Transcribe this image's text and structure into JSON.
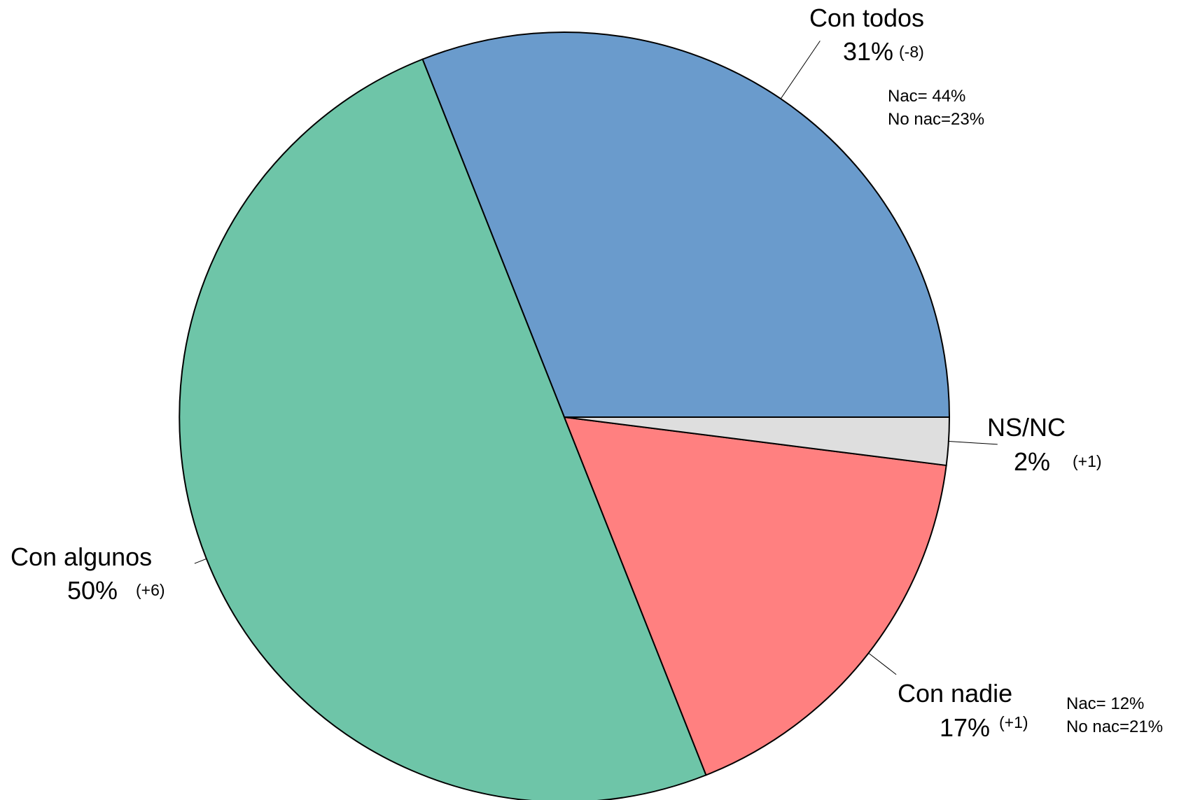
{
  "chart_data": {
    "type": "pie",
    "start_angle_deg": 0,
    "direction": "counterclockwise",
    "slices": [
      {
        "name": "Con todos",
        "value": 31,
        "pct_label": "31%",
        "change": "(-8)",
        "color": "#6A9BCC",
        "notes": [
          "Nac= 44%",
          "No nac=23%"
        ]
      },
      {
        "name": "Con algunos",
        "value": 50,
        "pct_label": "50%",
        "change": "(+6)",
        "color": "#6EC5A8",
        "notes": []
      },
      {
        "name": "Con nadie",
        "value": 17,
        "pct_label": "17%",
        "change": "(+1)",
        "color": "#FF8080",
        "notes": [
          "Nac= 12%",
          "No nac=21%"
        ]
      },
      {
        "name": "NS/NC",
        "value": 2,
        "pct_label": "2%",
        "change": "(+1)",
        "color": "#DEDEDE",
        "notes": []
      }
    ]
  }
}
